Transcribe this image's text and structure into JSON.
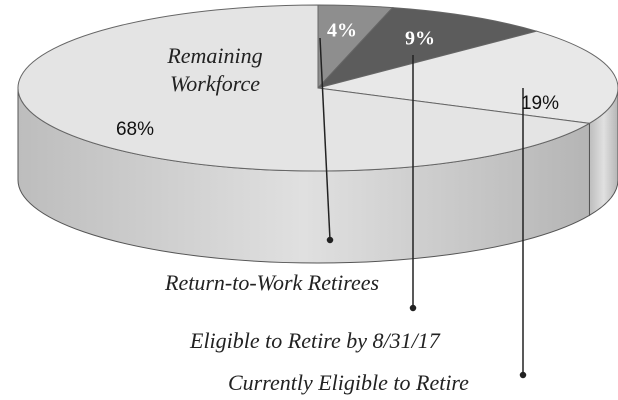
{
  "chart_data": {
    "type": "pie",
    "categories": [
      "Remaining Workforce",
      "Return-to-Work Retirees",
      "Eligible to Retire by 8/31/17",
      "Currently Eligible to Retire"
    ],
    "values": [
      68,
      4,
      9,
      19
    ],
    "value_labels": [
      "68%",
      "4%",
      "9%",
      "19%"
    ],
    "colors": [
      "#e4e4e4",
      "#8e8e8e",
      "#5c5c5c",
      "#e8e8e8"
    ]
  }
}
